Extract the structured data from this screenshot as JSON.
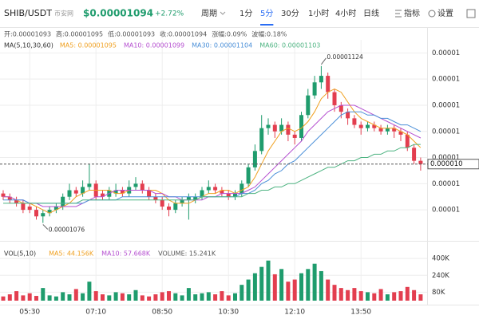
{
  "header": {
    "symbol": "SHIB/USDT",
    "exchange": "币安网",
    "price": "$0.00001094",
    "change": "+2.72%",
    "period_label": "周期",
    "periods": [
      {
        "label": "1分"
      },
      {
        "label": "5分",
        "selected": true
      },
      {
        "label": "30分"
      },
      {
        "label": "1小时"
      },
      {
        "label": "4小时"
      },
      {
        "label": "日线"
      }
    ],
    "tools": [
      "指标",
      "设置"
    ]
  },
  "info_line": [
    "开:0.00001093",
    "高:0.00001095",
    "低:0.00001093",
    "收:0.00001094",
    "涨幅:0.09%",
    "波幅:0.18%"
  ],
  "chart_data": [
    {
      "type": "candlestick",
      "categories": [
        null,
        null,
        null,
        null,
        "05:30",
        null,
        null,
        null,
        null,
        null,
        null,
        null,
        null,
        null,
        "07:10",
        null,
        null,
        null,
        null,
        null,
        null,
        null,
        null,
        null,
        "08:50",
        null,
        null,
        null,
        null,
        null,
        null,
        null,
        null,
        null,
        "10:30",
        null,
        null,
        null,
        null,
        null,
        null,
        null,
        null,
        null,
        "12:10",
        null,
        null,
        null,
        null,
        null,
        null,
        null,
        null,
        null,
        "13:50",
        null,
        null,
        null,
        null,
        null,
        null,
        null,
        null,
        null
      ],
      "open": [
        1.085e-05,
        1.084e-05,
        1.083e-05,
        1.082e-05,
        1.081e-05,
        1.08e-05,
        1.078e-05,
        1.079e-05,
        1.08e-05,
        1.081e-05,
        1.084e-05,
        1.086e-05,
        1.085e-05,
        1.087e-05,
        1.088e-05,
        1.085e-05,
        1.084e-05,
        1.085e-05,
        1.086e-05,
        1.085e-05,
        1.087e-05,
        1.088e-05,
        1.086e-05,
        1.084e-05,
        1.083e-05,
        1.081e-05,
        1.08e-05,
        1.082e-05,
        1.083e-05,
        1.083e-05,
        1.084e-05,
        1.086e-05,
        1.087e-05,
        1.086e-05,
        1.085e-05,
        1.084e-05,
        1.085e-05,
        1.088e-05,
        1.093e-05,
        1.098e-05,
        1.105e-05,
        1.106e-05,
        1.104e-05,
        1.106e-05,
        1.103e-05,
        1.102e-05,
        1.109e-05,
        1.115e-05,
        1.119e-05,
        1.121e-05,
        1.116e-05,
        1.112e-05,
        1.11e-05,
        1.108e-05,
        1.106e-05,
        1.105e-05,
        1.106e-05,
        1.105e-05,
        1.104e-05,
        1.105e-05,
        1.104e-05,
        1.103e-05,
        1.099e-05,
        1.095e-05
      ],
      "high": [
        1.086e-05,
        1.085e-05,
        1.084e-05,
        1.083e-05,
        1.082e-05,
        1.081e-05,
        1.08e-05,
        1.081e-05,
        1.082e-05,
        1.085e-05,
        1.088e-05,
        1.087e-05,
        1.089e-05,
        1.094e-05,
        1.089e-05,
        1.086e-05,
        1.087e-05,
        1.088e-05,
        1.087e-05,
        1.089e-05,
        1.09e-05,
        1.089e-05,
        1.087e-05,
        1.085e-05,
        1.084e-05,
        1.082e-05,
        1.083e-05,
        1.084e-05,
        1.085e-05,
        1.085e-05,
        1.087e-05,
        1.089e-05,
        1.088e-05,
        1.087e-05,
        1.086e-05,
        1.086e-05,
        1.089e-05,
        1.094e-05,
        1.1e-05,
        1.109e-05,
        1.108e-05,
        1.107e-05,
        1.108e-05,
        1.107e-05,
        1.104e-05,
        1.11e-05,
        1.117e-05,
        1.121e-05,
        1.124e-05,
        1.122e-05,
        1.117e-05,
        1.113e-05,
        1.111e-05,
        1.109e-05,
        1.107e-05,
        1.107e-05,
        1.107e-05,
        1.106e-05,
        1.106e-05,
        1.106e-05,
        1.105e-05,
        1.104e-05,
        1.1e-05,
        1.096e-05
      ],
      "low": [
        1.083e-05,
        1.082e-05,
        1.081e-05,
        1.079e-05,
        1.079e-05,
        1.077e-05,
        1.076e-05,
        1.078e-05,
        1.079e-05,
        1.08e-05,
        1.083e-05,
        1.084e-05,
        1.084e-05,
        1.086e-05,
        1.083e-05,
        1.083e-05,
        1.083e-05,
        1.084e-05,
        1.084e-05,
        1.084e-05,
        1.086e-05,
        1.085e-05,
        1.083e-05,
        1.082e-05,
        1.08e-05,
        1.078e-05,
        1.079e-05,
        1.081e-05,
        1.077e-05,
        1.082e-05,
        1.083e-05,
        1.085e-05,
        1.085e-05,
        1.084e-05,
        1.083e-05,
        1.083e-05,
        1.084e-05,
        1.087e-05,
        1.092e-05,
        1.097e-05,
        1.103e-05,
        1.102e-05,
        1.103e-05,
        1.101e-05,
        1.1e-05,
        1.101e-05,
        1.108e-05,
        1.114e-05,
        1.117e-05,
        1.114e-05,
        1.11e-05,
        1.108e-05,
        1.106e-05,
        1.105e-05,
        1.103e-05,
        1.104e-05,
        1.104e-05,
        1.103e-05,
        1.103e-05,
        1.102e-05,
        1.101e-05,
        1.098e-05,
        1.094e-05,
        1.092e-05
      ],
      "close": [
        1.084e-05,
        1.083e-05,
        1.082e-05,
        1.08e-05,
        1.08e-05,
        1.078e-05,
        1.079e-05,
        1.08e-05,
        1.081e-05,
        1.084e-05,
        1.086e-05,
        1.085e-05,
        1.087e-05,
        1.088e-05,
        1.084e-05,
        1.084e-05,
        1.086e-05,
        1.086e-05,
        1.085e-05,
        1.087e-05,
        1.088e-05,
        1.086e-05,
        1.084e-05,
        1.083e-05,
        1.081e-05,
        1.08e-05,
        1.082e-05,
        1.083e-05,
        1.084e-05,
        1.084e-05,
        1.086e-05,
        1.087e-05,
        1.086e-05,
        1.085e-05,
        1.084e-05,
        1.085e-05,
        1.088e-05,
        1.093e-05,
        1.098e-05,
        1.105e-05,
        1.106e-05,
        1.104e-05,
        1.106e-05,
        1.103e-05,
        1.102e-05,
        1.109e-05,
        1.115e-05,
        1.119e-05,
        1.121e-05,
        1.116e-05,
        1.112e-05,
        1.11e-05,
        1.108e-05,
        1.106e-05,
        1.105e-05,
        1.106e-05,
        1.105e-05,
        1.104e-05,
        1.105e-05,
        1.104e-05,
        1.103e-05,
        1.099e-05,
        1.095e-05,
        1.094e-05
      ],
      "up_color": "#1f9c6d",
      "down_color": "#e33e4f",
      "legend_title": "MA(5,10,30,60)",
      "series": [
        {
          "name": "MA5: 0.00001095",
          "color": "#f0a020",
          "values": [
            1.084e-05,
            1.084e-05,
            1.083e-05,
            1.082e-05,
            1.082e-05,
            1.081e-05,
            1.08e-05,
            1.079e-05,
            1.08e-05,
            1.081e-05,
            1.082e-05,
            1.084e-05,
            1.085e-05,
            1.086e-05,
            1.086e-05,
            1.086e-05,
            1.086e-05,
            1.085e-05,
            1.085e-05,
            1.086e-05,
            1.086e-05,
            1.086e-05,
            1.086e-05,
            1.086e-05,
            1.085e-05,
            1.083e-05,
            1.082e-05,
            1.082e-05,
            1.082e-05,
            1.083e-05,
            1.084e-05,
            1.085e-05,
            1.085e-05,
            1.086e-05,
            1.086e-05,
            1.085e-05,
            1.086e-05,
            1.087e-05,
            1.09e-05,
            1.094e-05,
            1.098e-05,
            1.101e-05,
            1.104e-05,
            1.105e-05,
            1.104e-05,
            1.105e-05,
            1.107e-05,
            1.11e-05,
            1.114e-05,
            1.116e-05,
            1.117e-05,
            1.116e-05,
            1.113e-05,
            1.11e-05,
            1.108e-05,
            1.107e-05,
            1.106e-05,
            1.105e-05,
            1.105e-05,
            1.105e-05,
            1.104e-05,
            1.103e-05,
            1.101e-05,
            1.099e-05
          ]
        },
        {
          "name": "MA10: 0.00001099",
          "color": "#b54fd0",
          "values": [
            1.084e-05,
            1.084e-05,
            1.083e-05,
            1.083e-05,
            1.082e-05,
            1.082e-05,
            1.081e-05,
            1.081e-05,
            1.081e-05,
            1.081e-05,
            1.081e-05,
            1.081e-05,
            1.082e-05,
            1.083e-05,
            1.084e-05,
            1.084e-05,
            1.085e-05,
            1.086e-05,
            1.086e-05,
            1.086e-05,
            1.086e-05,
            1.086e-05,
            1.086e-05,
            1.085e-05,
            1.085e-05,
            1.084e-05,
            1.084e-05,
            1.083e-05,
            1.083e-05,
            1.083e-05,
            1.083e-05,
            1.084e-05,
            1.084e-05,
            1.085e-05,
            1.085e-05,
            1.085e-05,
            1.085e-05,
            1.086e-05,
            1.087e-05,
            1.089e-05,
            1.091e-05,
            1.093e-05,
            1.095e-05,
            1.097e-05,
            1.099e-05,
            1.101e-05,
            1.104e-05,
            1.106e-05,
            1.108e-05,
            1.11e-05,
            1.111e-05,
            1.112e-05,
            1.112e-05,
            1.112e-05,
            1.111e-05,
            1.11e-05,
            1.109e-05,
            1.108e-05,
            1.107e-05,
            1.106e-05,
            1.105e-05,
            1.104e-05,
            1.103e-05,
            1.102e-05
          ]
        },
        {
          "name": "MA30: 0.00001104",
          "color": "#4a8fd8",
          "values": [
            1.083e-05,
            1.083e-05,
            1.083e-05,
            1.083e-05,
            1.082e-05,
            1.082e-05,
            1.082e-05,
            1.082e-05,
            1.082e-05,
            1.082e-05,
            1.082e-05,
            1.082e-05,
            1.082e-05,
            1.083e-05,
            1.083e-05,
            1.083e-05,
            1.083e-05,
            1.083e-05,
            1.084e-05,
            1.084e-05,
            1.084e-05,
            1.084e-05,
            1.084e-05,
            1.084e-05,
            1.084e-05,
            1.084e-05,
            1.084e-05,
            1.084e-05,
            1.084e-05,
            1.084e-05,
            1.084e-05,
            1.084e-05,
            1.084e-05,
            1.084e-05,
            1.084e-05,
            1.084e-05,
            1.085e-05,
            1.085e-05,
            1.086e-05,
            1.088e-05,
            1.089e-05,
            1.091e-05,
            1.092e-05,
            1.094e-05,
            1.095e-05,
            1.097e-05,
            1.099e-05,
            1.101e-05,
            1.103e-05,
            1.105e-05,
            1.107e-05,
            1.109e-05,
            1.11e-05,
            1.11e-05,
            1.11e-05,
            1.109e-05,
            1.109e-05,
            1.108e-05,
            1.108e-05,
            1.107e-05,
            1.106e-05,
            1.106e-05,
            1.105e-05,
            1.104e-05
          ]
        },
        {
          "name": "MA60: 0.00001103",
          "color": "#4db381",
          "values": [
            1.082e-05,
            1.082e-05,
            1.082e-05,
            1.082e-05,
            1.082e-05,
            1.082e-05,
            1.082e-05,
            1.082e-05,
            1.082e-05,
            1.082e-05,
            1.082e-05,
            1.082e-05,
            1.083e-05,
            1.083e-05,
            1.083e-05,
            1.083e-05,
            1.083e-05,
            1.083e-05,
            1.083e-05,
            1.083e-05,
            1.083e-05,
            1.083e-05,
            1.083e-05,
            1.083e-05,
            1.083e-05,
            1.083e-05,
            1.083e-05,
            1.083e-05,
            1.083e-05,
            1.083e-05,
            1.084e-05,
            1.084e-05,
            1.084e-05,
            1.084e-05,
            1.084e-05,
            1.084e-05,
            1.084e-05,
            1.085e-05,
            1.085e-05,
            1.086e-05,
            1.086e-05,
            1.087e-05,
            1.087e-05,
            1.088e-05,
            1.088e-05,
            1.089e-05,
            1.09e-05,
            1.091e-05,
            1.092e-05,
            1.093e-05,
            1.093e-05,
            1.094e-05,
            1.095e-05,
            1.095e-05,
            1.096e-05,
            1.096e-05,
            1.097e-05,
            1.097e-05,
            1.098e-05,
            1.098e-05,
            1.099e-05,
            1.099e-05,
            1.1e-05,
            1.1e-05
          ]
        }
      ],
      "max_label": "0.00001124",
      "min_label": "0.00001076",
      "last_price": {
        "value": 1.094e-05,
        "label": "0.000010"
      },
      "ylim": [
        1.071e-05,
        1.132e-05
      ],
      "yticks": [
        {
          "value": 1.128e-05,
          "label": "0.00001"
        },
        {
          "value": 1.12e-05,
          "label": "0.00001"
        },
        {
          "value": 1.112e-05,
          "label": "0.00001"
        },
        {
          "value": 1.104e-05,
          "label": "0.00001"
        },
        {
          "value": 1.096e-05,
          "label": "0.00001"
        },
        {
          "value": 1.088e-05,
          "label": "0.00001"
        },
        {
          "value": 1.08e-05,
          "label": "0.00001"
        }
      ],
      "grid": true
    },
    {
      "type": "bar",
      "legend_title": "VOL(5,10)",
      "legend": [
        {
          "text": "MA5: 44.156K",
          "color": "#f0a020"
        },
        {
          "text": "MA10: 57.668K",
          "color": "#b54fd0"
        },
        {
          "text": "VOLUME: 15.241K",
          "color": "#555555"
        }
      ],
      "values": [
        40000,
        60000,
        90000,
        50000,
        70000,
        45000,
        120000,
        50000,
        40000,
        80000,
        60000,
        110000,
        70000,
        180000,
        90000,
        60000,
        50000,
        80000,
        70000,
        60000,
        100000,
        50000,
        40000,
        60000,
        80000,
        90000,
        70000,
        50000,
        120000,
        60000,
        70000,
        80000,
        60000,
        90000,
        50000,
        70000,
        150000,
        200000,
        260000,
        320000,
        380000,
        250000,
        300000,
        180000,
        200000,
        260000,
        300000,
        350000,
        280000,
        200000,
        150000,
        120000,
        100000,
        120000,
        90000,
        80000,
        70000,
        110000,
        60000,
        80000,
        90000,
        130000,
        100000,
        60000
      ],
      "up_color": "#1f9c6d",
      "down_color": "#e33e4f",
      "ylim": [
        0,
        446000
      ],
      "yticks": [
        {
          "value": 400000,
          "label": "400K"
        },
        {
          "value": 240000,
          "label": "240K"
        },
        {
          "value": 80000,
          "label": "80K"
        }
      ],
      "grid": true
    }
  ]
}
